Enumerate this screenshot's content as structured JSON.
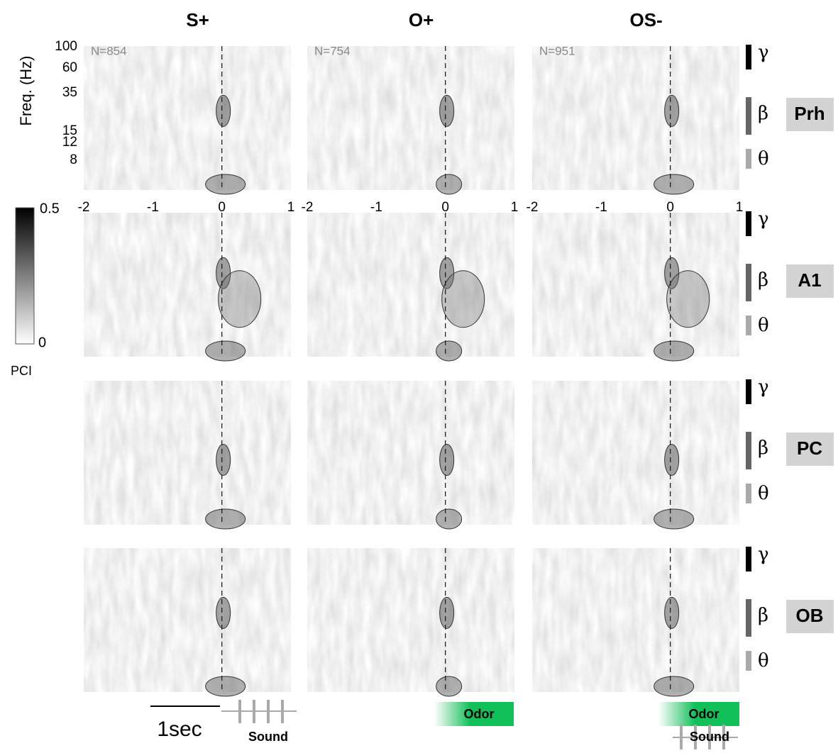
{
  "columns": [
    "S+",
    "O+",
    "OS-"
  ],
  "rows": [
    "Prh",
    "A1",
    "PC",
    "OB"
  ],
  "n_labels": [
    "N=854",
    "N=754",
    "N=951"
  ],
  "y_axis": {
    "title": "Freq. (Hz)",
    "ticks": [
      "100",
      "60",
      "35",
      "15",
      "12",
      "8"
    ]
  },
  "x_axis": {
    "ticks": [
      "-2",
      "-1",
      "0",
      "1"
    ]
  },
  "colorbar": {
    "max": "0.5",
    "min": "0",
    "label": "PCI"
  },
  "bands": [
    "γ",
    "β",
    "θ"
  ],
  "scale_bar": "1sec",
  "stimuli": {
    "sound": "Sound",
    "odor": "Odor"
  }
}
